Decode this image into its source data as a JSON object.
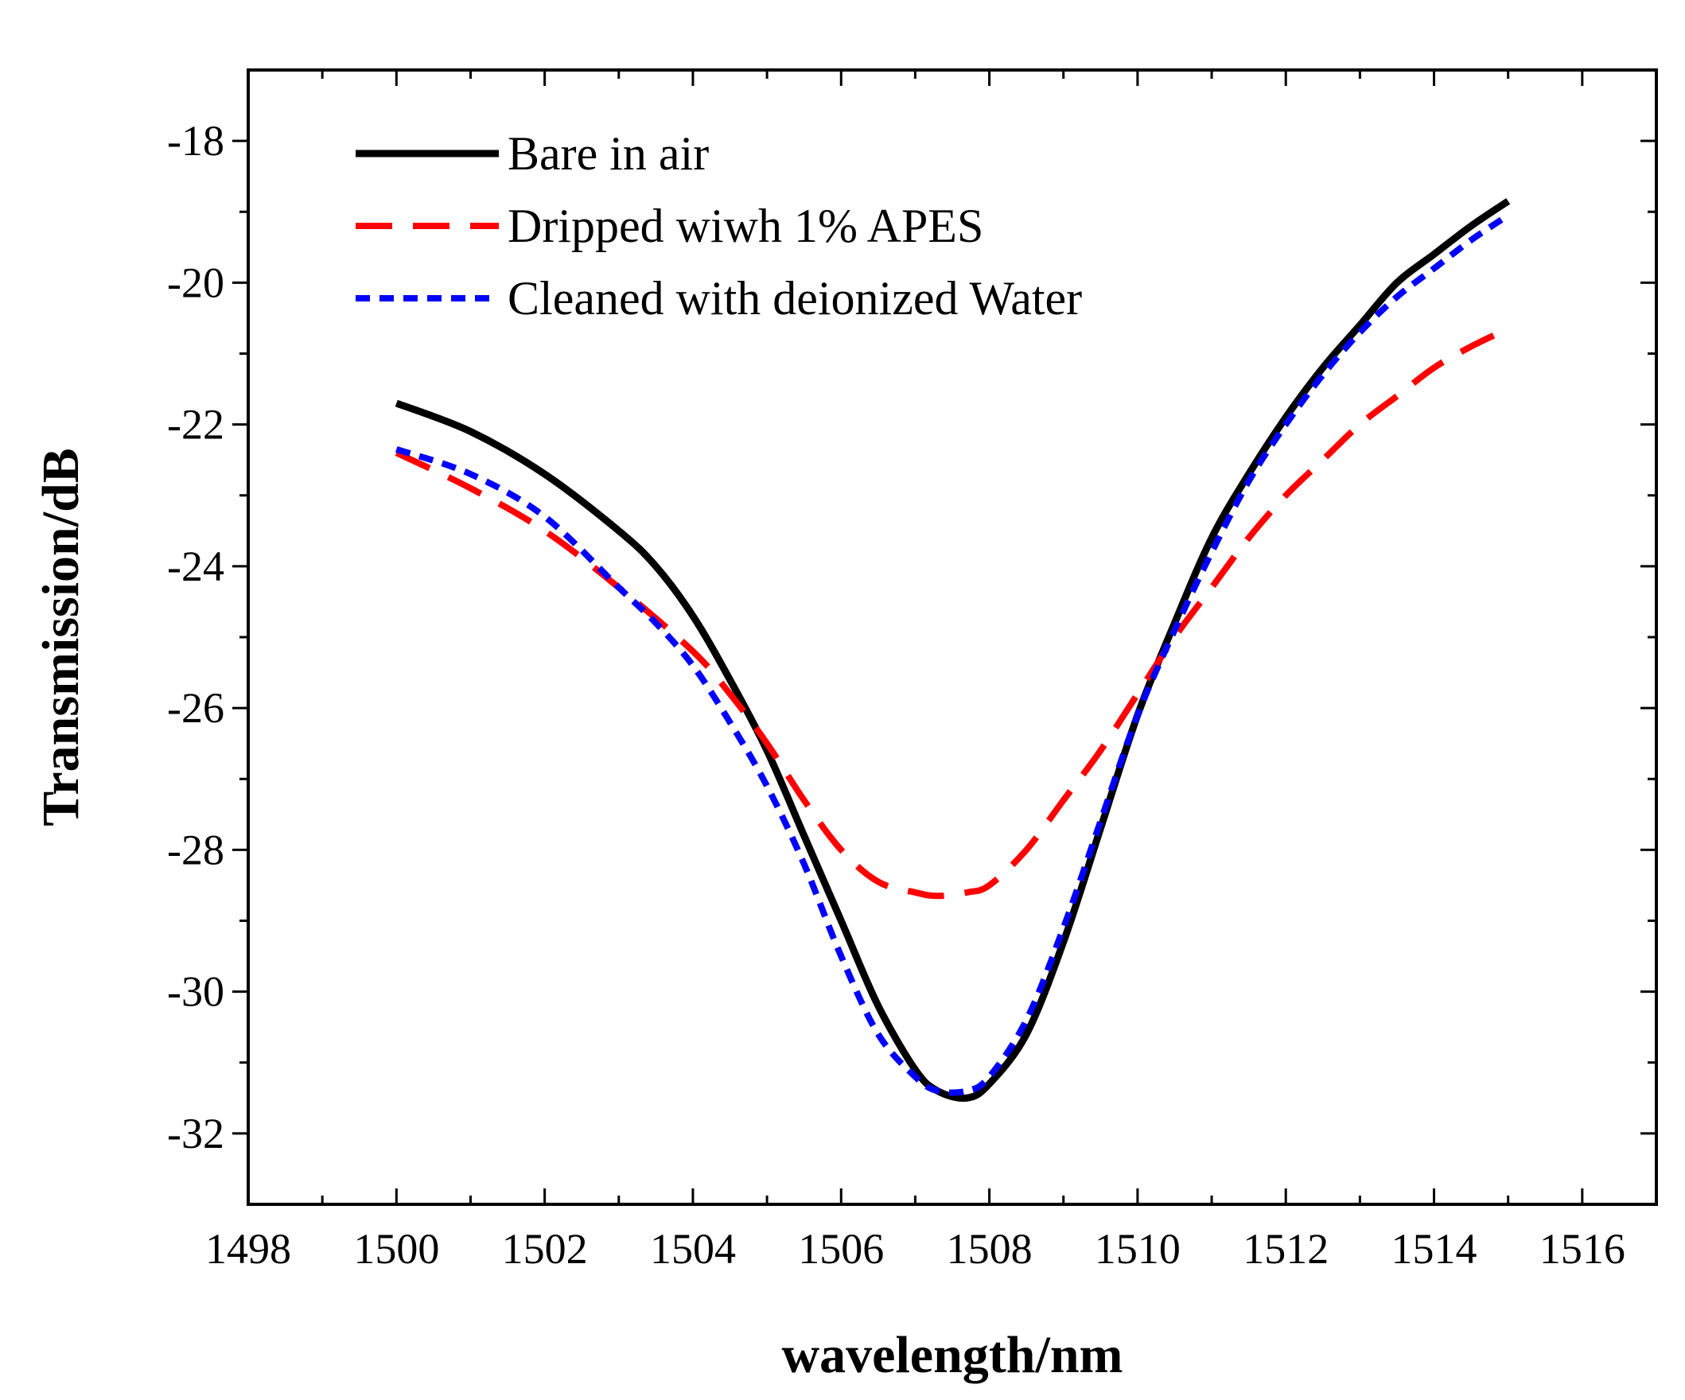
{
  "chart_data": {
    "type": "line",
    "title": "",
    "xlabel": "wavelength/nm",
    "ylabel": "Transmission/dB",
    "xlim": [
      1498,
      1517
    ],
    "ylim": [
      -33,
      -17
    ],
    "xticks": [
      1498,
      1500,
      1502,
      1504,
      1506,
      1508,
      1510,
      1512,
      1514,
      1516
    ],
    "yticks": [
      -18,
      -20,
      -22,
      -24,
      -26,
      -28,
      -30,
      -32
    ],
    "grid": false,
    "legend_position": "top-left",
    "series": [
      {
        "name": "Bare in air",
        "color": "#000000",
        "style": "solid",
        "x": [
          1500,
          1501,
          1502,
          1503,
          1503.5,
          1504,
          1504.5,
          1505,
          1505.5,
          1506,
          1506.5,
          1507,
          1507.3,
          1507.7,
          1508,
          1508.5,
          1509,
          1509.5,
          1510,
          1510.5,
          1511,
          1511.5,
          1512,
          1512.5,
          1513,
          1513.5,
          1514,
          1514.5,
          1515
        ],
        "y": [
          -21.7,
          -22.1,
          -22.7,
          -23.5,
          -24.0,
          -24.7,
          -25.6,
          -26.6,
          -27.8,
          -29.0,
          -30.2,
          -31.1,
          -31.4,
          -31.5,
          -31.3,
          -30.6,
          -29.3,
          -27.7,
          -26.1,
          -24.8,
          -23.6,
          -22.7,
          -21.9,
          -21.2,
          -20.6,
          -20.0,
          -19.6,
          -19.2,
          -18.85
        ]
      },
      {
        "name": "Dripped wiwh 1% APES",
        "color": "#ff0000",
        "style": "dashed",
        "x": [
          1500,
          1501,
          1502,
          1503,
          1504,
          1504.5,
          1505,
          1505.5,
          1506,
          1506.5,
          1507,
          1507.3,
          1507.7,
          1508,
          1508.5,
          1509,
          1509.5,
          1510,
          1510.5,
          1511,
          1511.5,
          1512,
          1512.5,
          1513,
          1513.5,
          1514,
          1514.5,
          1515
        ],
        "y": [
          -22.4,
          -22.9,
          -23.5,
          -24.3,
          -25.2,
          -25.8,
          -26.5,
          -27.3,
          -28.0,
          -28.45,
          -28.6,
          -28.65,
          -28.6,
          -28.5,
          -28.0,
          -27.3,
          -26.6,
          -25.8,
          -25.0,
          -24.3,
          -23.6,
          -23.0,
          -22.5,
          -22.0,
          -21.6,
          -21.2,
          -20.9,
          -20.65
        ]
      },
      {
        "name": "Cleaned with deionized Water",
        "color": "#0000ff",
        "style": "dotted",
        "x": [
          1500,
          1501,
          1502,
          1503,
          1503.5,
          1504,
          1504.5,
          1505,
          1505.5,
          1506,
          1506.5,
          1507,
          1507.3,
          1507.7,
          1508,
          1508.5,
          1509,
          1509.5,
          1510,
          1510.5,
          1511,
          1511.5,
          1512,
          1512.5,
          1513,
          1513.5,
          1514,
          1514.5,
          1515
        ],
        "y": [
          -22.35,
          -22.7,
          -23.3,
          -24.3,
          -24.8,
          -25.4,
          -26.2,
          -27.1,
          -28.2,
          -29.5,
          -30.6,
          -31.2,
          -31.4,
          -31.4,
          -31.2,
          -30.4,
          -29.1,
          -27.6,
          -26.1,
          -24.9,
          -23.8,
          -22.8,
          -22.0,
          -21.3,
          -20.7,
          -20.2,
          -19.8,
          -19.4,
          -19.05
        ]
      }
    ]
  }
}
